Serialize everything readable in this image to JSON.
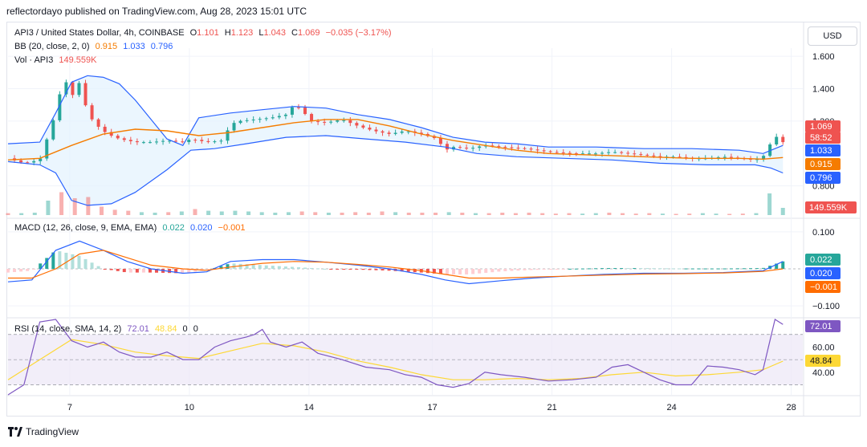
{
  "header": {
    "published_line": "reflectordayo published on TradingView.com, Aug 28, 2023 15:01 UTC"
  },
  "legend": {
    "symbol": "API3 / United States Dollar, 4h, COINBASE",
    "ohlc": [
      {
        "label": "O",
        "value": "1.101"
      },
      {
        "label": "H",
        "value": "1.123"
      },
      {
        "label": "L",
        "value": "1.043"
      },
      {
        "label": "C",
        "value": "1.069"
      }
    ],
    "change": "−0.035 (−3.17%)",
    "bb_label": "BB (20, close, 2, 0)",
    "bb_values": [
      "0.915",
      "1.033",
      "0.796"
    ],
    "vol_label": "Vol · API3",
    "vol_value": "149.559K",
    "macd_label": "MACD (12, 26, close, 9, EMA, EMA)",
    "macd_values": [
      "0.022",
      "0.020",
      "−0.001"
    ],
    "rsi_label": "RSI (14, close, SMA, 14, 2)",
    "rsi_values": [
      "72.01",
      "48.84",
      "0",
      "0"
    ]
  },
  "currency_button": "USD",
  "footer": {
    "brand": "TradingView"
  },
  "colors": {
    "up": "#26a69a",
    "down": "#ef5350",
    "bb_basis": "#f57c00",
    "bb_band": "#2962ff",
    "macd": "#2962ff",
    "signal": "#ff6d00",
    "rsi": "#7e57c2",
    "rsi_ma": "#fdd835",
    "grid": "#f0f3fa",
    "bb_fill": "#e3f2fd",
    "rsi_fill": "#ede7f6"
  },
  "chart_data": {
    "type": "candlestick",
    "x_ticks": [
      "7",
      "10",
      "14",
      "17",
      "21",
      "24",
      "28"
    ],
    "price_axis": {
      "ticks": [
        "1.600",
        "1.400",
        "1.200",
        "0.800"
      ],
      "ylim": [
        0.62,
        1.65
      ],
      "labels": [
        {
          "text": "1.069",
          "bg": "#ef5350",
          "value": 1.069
        },
        {
          "text": "58:52",
          "bg": "#ef5350",
          "value": 1.0
        },
        {
          "text": "1.033",
          "bg": "#2962ff",
          "value": 1.033
        },
        {
          "text": "0.915",
          "bg": "#f57c00",
          "value": 0.915
        },
        {
          "text": "0.796",
          "bg": "#2962ff",
          "value": 0.796
        }
      ],
      "volume_label": {
        "text": "149.559K",
        "bg": "#ef5350"
      }
    },
    "macd_axis": {
      "ticks": [
        "0.100",
        "−0.100"
      ],
      "ylim": [
        -0.13,
        0.13
      ],
      "labels": [
        {
          "text": "0.022",
          "bg": "#26a69a",
          "value": 0.022
        },
        {
          "text": "0.020",
          "bg": "#2962ff",
          "value": 0.009
        },
        {
          "text": "−0.001",
          "bg": "#ff6d00",
          "value": -0.008
        }
      ]
    },
    "rsi_axis": {
      "ticks": [
        "60.00",
        "40.00"
      ],
      "ylim": [
        22,
        82
      ],
      "labels": [
        {
          "text": "72.01",
          "bg": "#7e57c2",
          "value": 72.01
        },
        {
          "text": "48.84",
          "bg": "#fdd835",
          "value": 48.84
        }
      ]
    },
    "price_path": [
      [
        0,
        0.97
      ],
      [
        4,
        0.94
      ],
      [
        8,
        0.96
      ],
      [
        12,
        1.25
      ],
      [
        14,
        1.48
      ],
      [
        16,
        1.35
      ],
      [
        18,
        1.44
      ],
      [
        20,
        1.25
      ],
      [
        22,
        1.18
      ],
      [
        25,
        1.12
      ],
      [
        28,
        1.09
      ],
      [
        32,
        1.07
      ],
      [
        36,
        1.07
      ],
      [
        40,
        1.08
      ],
      [
        44,
        1.07
      ],
      [
        46,
        1.09
      ],
      [
        50,
        1.07
      ],
      [
        54,
        1.08
      ],
      [
        56,
        1.18
      ],
      [
        58,
        1.2
      ],
      [
        62,
        1.21
      ],
      [
        66,
        1.22
      ],
      [
        70,
        1.24
      ],
      [
        72,
        1.3
      ],
      [
        74,
        1.27
      ],
      [
        76,
        1.2
      ],
      [
        80,
        1.19
      ],
      [
        84,
        1.21
      ],
      [
        88,
        1.17
      ],
      [
        92,
        1.14
      ],
      [
        96,
        1.12
      ],
      [
        100,
        1.14
      ],
      [
        104,
        1.12
      ],
      [
        108,
        1.09
      ],
      [
        110,
        1.02
      ],
      [
        112,
        1.04
      ],
      [
        116,
        1.03
      ],
      [
        120,
        1.05
      ],
      [
        124,
        1.04
      ],
      [
        130,
        1.03
      ],
      [
        136,
        1.01
      ],
      [
        142,
        1.0
      ],
      [
        148,
        1.0
      ],
      [
        152,
        1.01
      ],
      [
        156,
        1.0
      ],
      [
        160,
        0.99
      ],
      [
        164,
        0.98
      ],
      [
        168,
        0.98
      ],
      [
        172,
        0.97
      ],
      [
        176,
        0.97
      ],
      [
        180,
        0.98
      ],
      [
        184,
        0.97
      ],
      [
        188,
        0.96
      ],
      [
        190,
        0.98
      ],
      [
        193,
        1.11
      ],
      [
        195,
        1.07
      ]
    ],
    "bb_upper": [
      [
        0,
        1.06
      ],
      [
        8,
        1.07
      ],
      [
        12,
        1.25
      ],
      [
        16,
        1.44
      ],
      [
        20,
        1.48
      ],
      [
        24,
        1.47
      ],
      [
        28,
        1.43
      ],
      [
        32,
        1.33
      ],
      [
        36,
        1.21
      ],
      [
        40,
        1.09
      ],
      [
        44,
        1.05
      ],
      [
        48,
        1.22
      ],
      [
        56,
        1.25
      ],
      [
        64,
        1.27
      ],
      [
        72,
        1.29
      ],
      [
        80,
        1.28
      ],
      [
        88,
        1.24
      ],
      [
        96,
        1.21
      ],
      [
        104,
        1.16
      ],
      [
        112,
        1.1
      ],
      [
        120,
        1.07
      ],
      [
        128,
        1.06
      ],
      [
        136,
        1.04
      ],
      [
        148,
        1.04
      ],
      [
        160,
        1.03
      ],
      [
        172,
        1.03
      ],
      [
        184,
        1.02
      ],
      [
        190,
        1.0
      ],
      [
        193,
        1.03
      ],
      [
        195,
        1.05
      ]
    ],
    "bb_basis": [
      [
        0,
        0.96
      ],
      [
        8,
        0.97
      ],
      [
        16,
        1.05
      ],
      [
        24,
        1.12
      ],
      [
        32,
        1.15
      ],
      [
        40,
        1.14
      ],
      [
        48,
        1.11
      ],
      [
        56,
        1.13
      ],
      [
        64,
        1.16
      ],
      [
        72,
        1.19
      ],
      [
        80,
        1.21
      ],
      [
        88,
        1.21
      ],
      [
        96,
        1.17
      ],
      [
        104,
        1.12
      ],
      [
        112,
        1.08
      ],
      [
        120,
        1.05
      ],
      [
        128,
        1.02
      ],
      [
        136,
        1.0
      ],
      [
        148,
        0.99
      ],
      [
        160,
        0.98
      ],
      [
        172,
        0.97
      ],
      [
        184,
        0.97
      ],
      [
        190,
        0.965
      ],
      [
        195,
        0.975
      ]
    ],
    "bb_lower": [
      [
        0,
        0.95
      ],
      [
        8,
        0.93
      ],
      [
        12,
        0.88
      ],
      [
        16,
        0.71
      ],
      [
        20,
        0.68
      ],
      [
        26,
        0.69
      ],
      [
        32,
        0.76
      ],
      [
        40,
        0.9
      ],
      [
        46,
        1.02
      ],
      [
        52,
        1.03
      ],
      [
        60,
        1.06
      ],
      [
        70,
        1.1
      ],
      [
        80,
        1.11
      ],
      [
        90,
        1.09
      ],
      [
        100,
        1.07
      ],
      [
        110,
        1.04
      ],
      [
        118,
        1.0
      ],
      [
        128,
        0.98
      ],
      [
        140,
        0.97
      ],
      [
        152,
        0.96
      ],
      [
        164,
        0.94
      ],
      [
        176,
        0.93
      ],
      [
        188,
        0.93
      ],
      [
        192,
        0.91
      ],
      [
        195,
        0.88
      ]
    ],
    "macd_line": [
      [
        0,
        -0.035
      ],
      [
        6,
        -0.03
      ],
      [
        12,
        0.05
      ],
      [
        18,
        0.075
      ],
      [
        24,
        0.05
      ],
      [
        30,
        0.02
      ],
      [
        36,
        0.0
      ],
      [
        44,
        -0.012
      ],
      [
        50,
        -0.008
      ],
      [
        56,
        0.02
      ],
      [
        64,
        0.025
      ],
      [
        72,
        0.025
      ],
      [
        80,
        0.018
      ],
      [
        88,
        0.01
      ],
      [
        96,
        0.0
      ],
      [
        104,
        -0.015
      ],
      [
        110,
        -0.03
      ],
      [
        116,
        -0.04
      ],
      [
        124,
        -0.032
      ],
      [
        132,
        -0.025
      ],
      [
        140,
        -0.02
      ],
      [
        150,
        -0.015
      ],
      [
        160,
        -0.012
      ],
      [
        170,
        -0.012
      ],
      [
        180,
        -0.01
      ],
      [
        190,
        -0.005
      ],
      [
        195,
        0.02
      ]
    ],
    "signal_line": [
      [
        0,
        -0.025
      ],
      [
        6,
        -0.025
      ],
      [
        12,
        0.0
      ],
      [
        18,
        0.04
      ],
      [
        24,
        0.05
      ],
      [
        30,
        0.03
      ],
      [
        36,
        0.01
      ],
      [
        44,
        0.0
      ],
      [
        50,
        -0.004
      ],
      [
        56,
        0.005
      ],
      [
        64,
        0.015
      ],
      [
        72,
        0.02
      ],
      [
        80,
        0.018
      ],
      [
        88,
        0.012
      ],
      [
        96,
        0.005
      ],
      [
        104,
        -0.005
      ],
      [
        110,
        -0.015
      ],
      [
        116,
        -0.025
      ],
      [
        124,
        -0.025
      ],
      [
        132,
        -0.022
      ],
      [
        140,
        -0.02
      ],
      [
        150,
        -0.017
      ],
      [
        160,
        -0.014
      ],
      [
        170,
        -0.013
      ],
      [
        180,
        -0.011
      ],
      [
        190,
        -0.007
      ],
      [
        195,
        0.0
      ]
    ],
    "rsi_line": [
      [
        0,
        22
      ],
      [
        4,
        30
      ],
      [
        8,
        80
      ],
      [
        12,
        82
      ],
      [
        16,
        65
      ],
      [
        20,
        60
      ],
      [
        24,
        64
      ],
      [
        28,
        56
      ],
      [
        32,
        52
      ],
      [
        36,
        52
      ],
      [
        40,
        56
      ],
      [
        44,
        50
      ],
      [
        48,
        50
      ],
      [
        52,
        60
      ],
      [
        56,
        65
      ],
      [
        60,
        68
      ],
      [
        62,
        70
      ],
      [
        64,
        74
      ],
      [
        66,
        64
      ],
      [
        70,
        60
      ],
      [
        74,
        64
      ],
      [
        78,
        55
      ],
      [
        84,
        50
      ],
      [
        90,
        44
      ],
      [
        96,
        42
      ],
      [
        100,
        38
      ],
      [
        104,
        36
      ],
      [
        108,
        30
      ],
      [
        112,
        28
      ],
      [
        116,
        31
      ],
      [
        120,
        40
      ],
      [
        124,
        38
      ],
      [
        130,
        36
      ],
      [
        136,
        33
      ],
      [
        142,
        34
      ],
      [
        148,
        36
      ],
      [
        152,
        44
      ],
      [
        156,
        46
      ],
      [
        160,
        40
      ],
      [
        164,
        34
      ],
      [
        168,
        30
      ],
      [
        172,
        30
      ],
      [
        176,
        45
      ],
      [
        180,
        44
      ],
      [
        184,
        42
      ],
      [
        188,
        38
      ],
      [
        190,
        42
      ],
      [
        193,
        82
      ],
      [
        195,
        78
      ]
    ],
    "rsi_ma": [
      [
        0,
        34
      ],
      [
        8,
        50
      ],
      [
        16,
        66
      ],
      [
        24,
        62
      ],
      [
        32,
        56
      ],
      [
        40,
        53
      ],
      [
        48,
        51
      ],
      [
        56,
        57
      ],
      [
        64,
        63
      ],
      [
        72,
        61
      ],
      [
        80,
        56
      ],
      [
        88,
        49
      ],
      [
        96,
        44
      ],
      [
        104,
        38
      ],
      [
        112,
        34
      ],
      [
        120,
        34
      ],
      [
        128,
        35
      ],
      [
        136,
        34
      ],
      [
        144,
        35
      ],
      [
        152,
        38
      ],
      [
        160,
        40
      ],
      [
        168,
        37
      ],
      [
        176,
        38
      ],
      [
        184,
        40
      ],
      [
        190,
        42
      ],
      [
        195,
        48.84
      ]
    ],
    "volume": [
      0.08,
      0.08,
      0.1,
      0.6,
      0.95,
      0.7,
      0.75,
      0.35,
      0.22,
      0.18,
      0.12,
      0.1,
      0.12,
      0.15,
      0.25,
      0.18,
      0.15,
      0.18,
      0.15,
      0.12,
      0.1,
      0.12,
      0.15,
      0.12,
      0.1,
      0.1,
      0.12,
      0.1,
      0.15,
      0.12,
      0.1,
      0.1,
      0.1,
      0.12,
      0.1,
      0.08,
      0.08,
      0.1,
      0.08,
      0.1,
      0.08,
      0.06,
      0.08,
      0.06,
      0.08,
      0.1,
      0.08,
      0.06,
      0.08,
      0.06,
      0.05,
      0.06,
      0.08,
      0.06,
      0.05,
      0.06,
      0.08,
      0.9,
      0.3
    ]
  }
}
